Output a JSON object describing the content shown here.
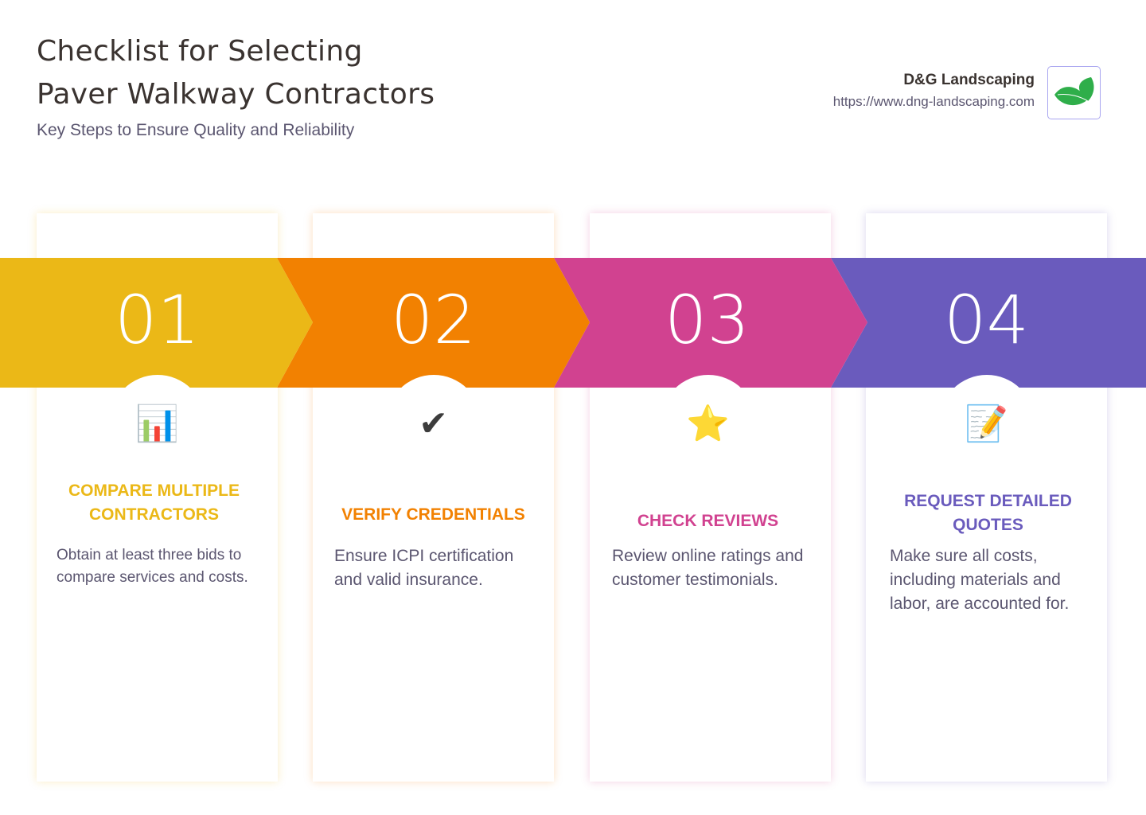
{
  "header": {
    "title_line1": "Checklist for Selecting",
    "title_line2": "Paver Walkway Contractors",
    "subtitle": "Key Steps to Ensure Quality and Reliability"
  },
  "brand": {
    "name": "D&G Landscaping",
    "url": "https://www.dng-landscaping.com",
    "logo_icon": "leaf-icon"
  },
  "colors": {
    "step1": "#ebb817",
    "step2": "#f28101",
    "step3": "#d14290",
    "step4": "#6a5bbd"
  },
  "steps": [
    {
      "number": "01",
      "icon": "bar-chart-icon",
      "glyph": "📊",
      "title": "COMPARE MULTIPLE CONTRACTORS",
      "description": "Obtain at least three bids to compare services and costs."
    },
    {
      "number": "02",
      "icon": "check-mark-icon",
      "glyph": "✔",
      "title": "VERIFY CREDENTIALS",
      "description": "Ensure ICPI certification and valid insurance."
    },
    {
      "number": "03",
      "icon": "star-icon",
      "glyph": "⭐",
      "title": "CHECK REVIEWS",
      "description": "Review online ratings and customer testimonials."
    },
    {
      "number": "04",
      "icon": "memo-icon",
      "glyph": "📝",
      "title": "REQUEST DETAILED QUOTES",
      "description": "Make sure all costs, including materials and labor, are accounted for."
    }
  ]
}
